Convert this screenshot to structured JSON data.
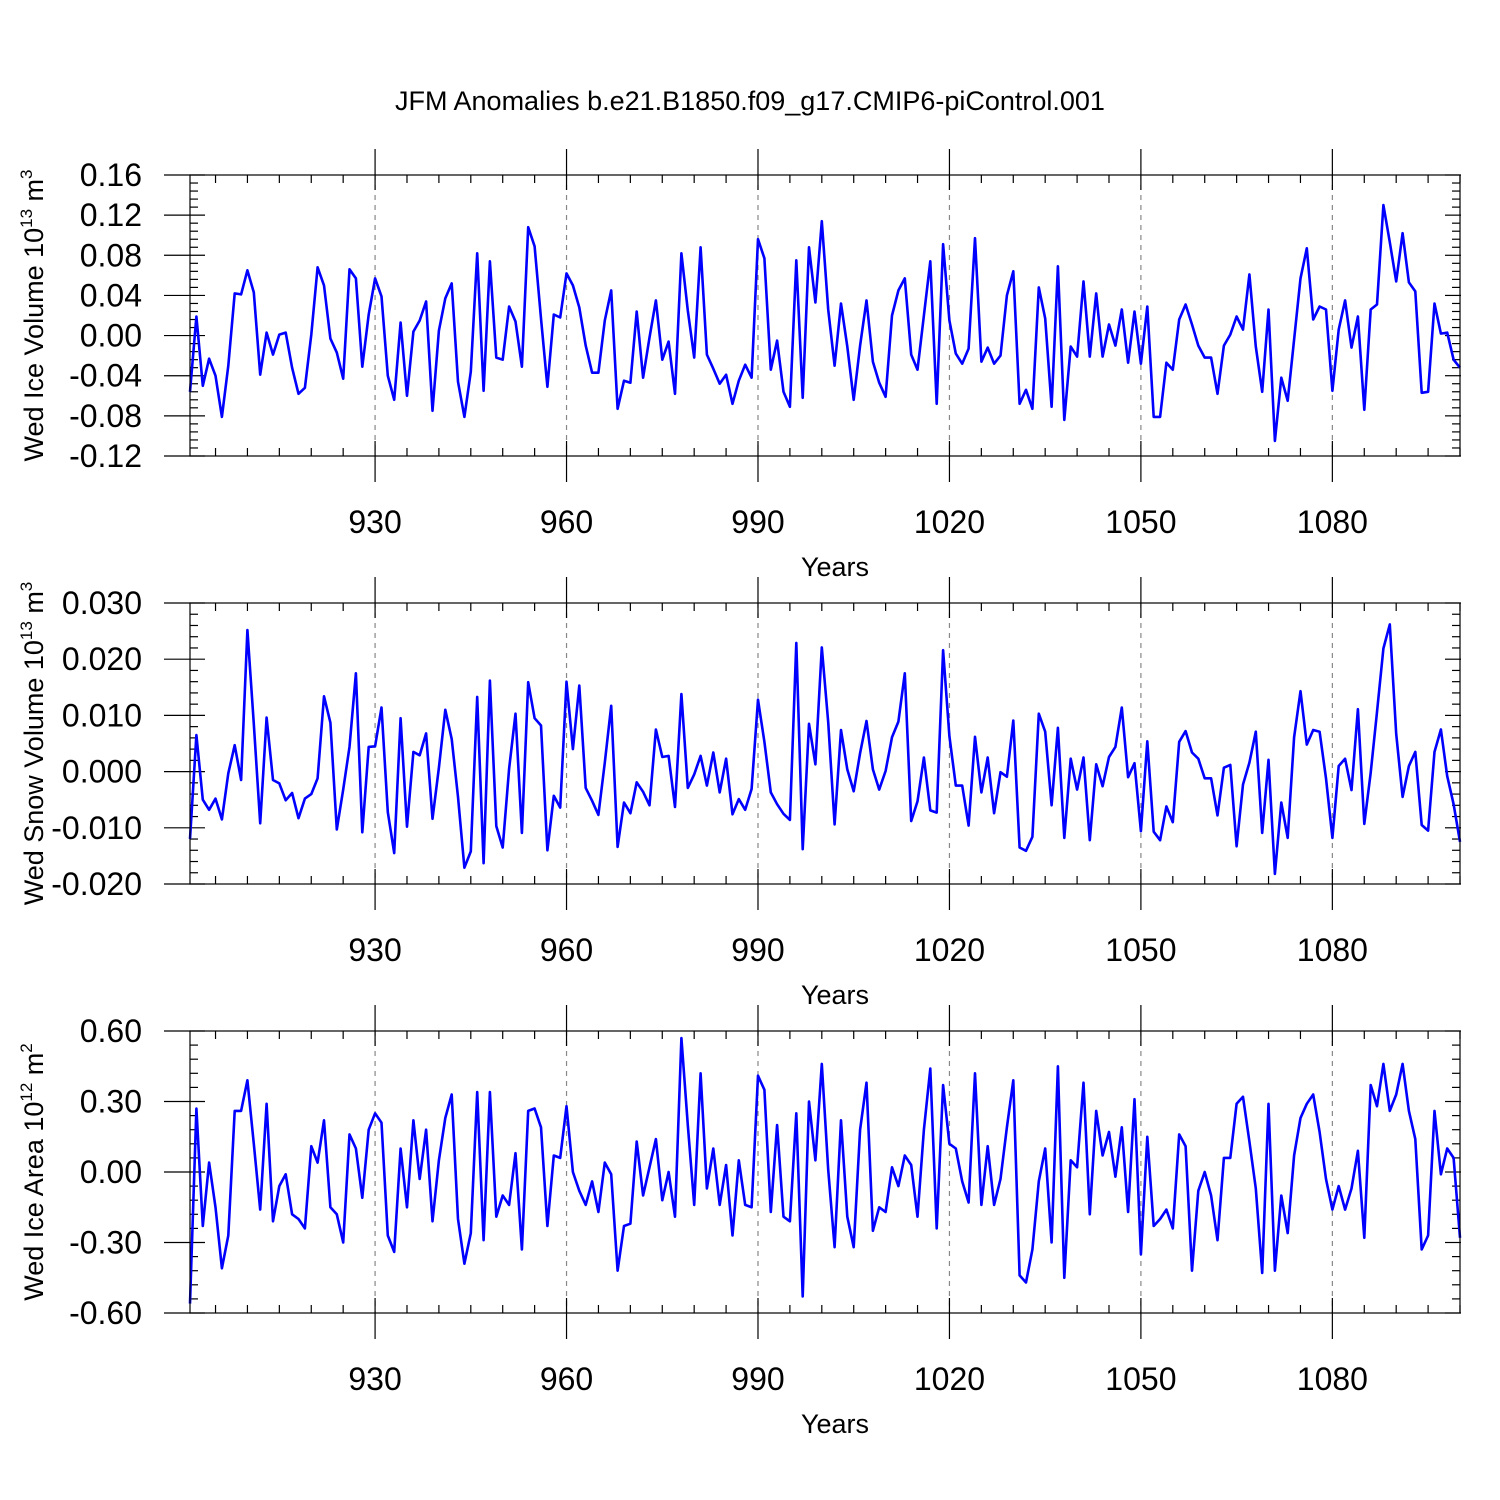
{
  "title": "JFM Anomalies b.e21.B1850.f09_g17.CMIP6-piControl.001",
  "chart_data": [
    {
      "type": "line",
      "ylabel": "Wed Ice Volume 10",
      "ylabel_exp": "13",
      "ylabel_unit": " m",
      "ylabel_unit_exp": "3",
      "xlabel": "Years",
      "xlim": [
        901,
        1100
      ],
      "ylim": [
        -0.12,
        0.16
      ],
      "xticks": [
        930,
        960,
        990,
        1020,
        1050,
        1080
      ],
      "xtick_labels": [
        "930",
        "960",
        "990",
        "1020",
        "1050",
        "1080"
      ],
      "yticks": [
        -0.12,
        -0.08,
        -0.04,
        0.0,
        0.04,
        0.08,
        0.12,
        0.16
      ],
      "ytick_labels": [
        "-0.12",
        "-0.08",
        "-0.04",
        "0.00",
        "0.04",
        "0.08",
        "0.12",
        "0.16"
      ],
      "grid_x": true,
      "color": "#0000ff",
      "x_start": 901,
      "values": [
        -0.056,
        0.019,
        -0.05,
        -0.023,
        -0.04,
        -0.081,
        -0.03,
        0.042,
        0.041,
        0.065,
        0.043,
        -0.039,
        0.003,
        -0.019,
        0.001,
        0.003,
        -0.032,
        -0.058,
        -0.052,
        0.001,
        0.068,
        0.05,
        -0.003,
        -0.017,
        -0.043,
        0.066,
        0.057,
        -0.031,
        0.021,
        0.057,
        0.039,
        -0.04,
        -0.064,
        0.013,
        -0.06,
        0.004,
        0.015,
        0.034,
        -0.075,
        0.005,
        0.037,
        0.052,
        -0.046,
        -0.081,
        -0.036,
        0.082,
        -0.055,
        0.074,
        -0.022,
        -0.024,
        0.029,
        0.014,
        -0.031,
        0.108,
        0.089,
        0.017,
        -0.051,
        0.021,
        0.018,
        0.062,
        0.05,
        0.028,
        -0.01,
        -0.037,
        -0.037,
        0.015,
        0.045,
        -0.073,
        -0.045,
        -0.047,
        0.024,
        -0.042,
        -0.002,
        0.035,
        -0.024,
        -0.006,
        -0.058,
        0.082,
        0.025,
        -0.022,
        0.088,
        -0.019,
        -0.033,
        -0.048,
        -0.039,
        -0.068,
        -0.045,
        -0.029,
        -0.042,
        0.096,
        0.077,
        -0.034,
        -0.005,
        -0.056,
        -0.071,
        0.075,
        -0.062,
        0.088,
        0.033,
        0.114,
        0.026,
        -0.03,
        0.032,
        -0.011,
        -0.064,
        -0.01,
        0.035,
        -0.026,
        -0.047,
        -0.061,
        0.02,
        0.045,
        0.057,
        -0.019,
        -0.034,
        0.02,
        0.074,
        -0.068,
        0.091,
        0.015,
        -0.018,
        -0.028,
        -0.013,
        0.097,
        -0.026,
        -0.012,
        -0.028,
        -0.02,
        0.04,
        0.064,
        -0.068,
        -0.054,
        -0.073,
        0.048,
        0.017,
        -0.071,
        0.069,
        -0.084,
        -0.011,
        -0.021,
        0.054,
        -0.021,
        0.042,
        -0.021,
        0.011,
        -0.01,
        0.026,
        -0.027,
        0.024,
        -0.028,
        0.029,
        -0.081,
        -0.081,
        -0.027,
        -0.034,
        0.016,
        0.031,
        0.011,
        -0.01,
        -0.022,
        -0.022,
        -0.058,
        -0.01,
        0.001,
        0.019,
        0.006,
        0.061,
        -0.011,
        -0.056,
        0.026,
        -0.105,
        -0.042,
        -0.065,
        -0.004,
        0.057,
        0.087,
        0.016,
        0.029,
        0.026,
        -0.055,
        0.006,
        0.035,
        -0.012,
        0.019,
        -0.074,
        0.026,
        0.031,
        0.13,
        0.093,
        0.054,
        0.102,
        0.053,
        0.044,
        -0.057,
        -0.056,
        0.032,
        0.002,
        0.003,
        -0.024,
        -0.032
      ]
    },
    {
      "type": "line",
      "ylabel": "Wed Snow Volume 10",
      "ylabel_exp": "13",
      "ylabel_unit": " m",
      "ylabel_unit_exp": "3",
      "xlabel": "Years",
      "xlim": [
        901,
        1100
      ],
      "ylim": [
        -0.02,
        0.03
      ],
      "xticks": [
        930,
        960,
        990,
        1020,
        1050,
        1080
      ],
      "xtick_labels": [
        "930",
        "960",
        "990",
        "1020",
        "1050",
        "1080"
      ],
      "yticks": [
        -0.02,
        -0.01,
        0.0,
        0.01,
        0.02,
        0.03
      ],
      "ytick_labels": [
        "-0.020",
        "-0.010",
        "0.000",
        "0.010",
        "0.020",
        "0.030"
      ],
      "grid_x": true,
      "color": "#0000ff",
      "x_start": 901,
      "values": [
        -0.012,
        0.0065,
        -0.005,
        -0.0068,
        -0.0048,
        -0.0085,
        -0.0003,
        0.0047,
        -0.0015,
        0.0252,
        0.0085,
        -0.0092,
        0.0096,
        -0.0015,
        -0.0021,
        -0.0051,
        -0.0038,
        -0.0083,
        -0.0048,
        -0.004,
        -0.0012,
        0.0134,
        0.0087,
        -0.0103,
        -0.0032,
        0.0044,
        0.0175,
        -0.0108,
        0.0044,
        0.0045,
        0.0114,
        -0.0072,
        -0.0145,
        0.0095,
        -0.0098,
        0.0035,
        0.0029,
        0.0068,
        -0.0084,
        0.0007,
        0.011,
        0.0058,
        -0.0045,
        -0.0171,
        -0.0142,
        0.0133,
        -0.0163,
        0.0162,
        -0.0097,
        -0.0135,
        0.0005,
        0.0103,
        -0.0109,
        0.0159,
        0.0095,
        0.0082,
        -0.014,
        -0.0043,
        -0.0064,
        0.016,
        0.004,
        0.0153,
        -0.0029,
        -0.0052,
        -0.0077,
        0.0016,
        0.0117,
        -0.0134,
        -0.0055,
        -0.0074,
        -0.0019,
        -0.0036,
        -0.006,
        0.0075,
        0.0026,
        0.0028,
        -0.0063,
        0.0138,
        -0.0029,
        -0.0005,
        0.0028,
        -0.0025,
        0.0034,
        -0.0037,
        0.0023,
        -0.0076,
        -0.0049,
        -0.0068,
        -0.0031,
        0.0128,
        0.0053,
        -0.0037,
        -0.0058,
        -0.0075,
        -0.0086,
        0.0229,
        -0.0138,
        0.0085,
        0.0013,
        0.0221,
        0.0088,
        -0.0094,
        0.0074,
        0.0004,
        -0.0035,
        0.0033,
        0.009,
        0.0004,
        -0.0032,
        0.0001,
        0.0061,
        0.0089,
        0.0175,
        -0.0088,
        -0.0053,
        0.0025,
        -0.0069,
        -0.0073,
        0.0216,
        0.0063,
        -0.0025,
        -0.0025,
        -0.0096,
        0.0062,
        -0.0037,
        0.0025,
        -0.0074,
        -0.0001,
        -0.0009,
        0.0091,
        -0.0135,
        -0.0141,
        -0.0116,
        0.0103,
        0.0071,
        -0.006,
        0.0078,
        -0.0118,
        0.0023,
        -0.0032,
        0.0025,
        -0.0122,
        0.0013,
        -0.0026,
        0.0026,
        0.0044,
        0.0114,
        -0.001,
        0.0015,
        -0.0106,
        0.0054,
        -0.0107,
        -0.0122,
        -0.0062,
        -0.009,
        0.0053,
        0.0072,
        0.0034,
        0.0023,
        -0.0012,
        -0.0012,
        -0.0078,
        0.0007,
        0.0012,
        -0.0133,
        -0.0023,
        0.0016,
        0.0071,
        -0.0109,
        0.0021,
        -0.0182,
        -0.0055,
        -0.0118,
        0.0061,
        0.0143,
        0.0048,
        0.0074,
        0.0071,
        -0.0012,
        -0.0118,
        0.001,
        0.0023,
        -0.0033,
        0.0111,
        -0.0093,
        -0.0002,
        0.0106,
        0.0219,
        0.0262,
        0.0067,
        -0.0045,
        0.001,
        0.0035,
        -0.0095,
        -0.0105,
        0.0035,
        0.0075,
        -0.0008,
        -0.0058,
        -0.0125
      ]
    },
    {
      "type": "line",
      "ylabel": "Wed Ice Area 10",
      "ylabel_exp": "12",
      "ylabel_unit": " m",
      "ylabel_unit_exp": "2",
      "xlabel": "Years",
      "xlim": [
        901,
        1100
      ],
      "ylim": [
        -0.6,
        0.6
      ],
      "xticks": [
        930,
        960,
        990,
        1020,
        1050,
        1080
      ],
      "xtick_labels": [
        "930",
        "960",
        "990",
        "1020",
        "1050",
        "1080"
      ],
      "yticks": [
        -0.6,
        -0.3,
        0.0,
        0.3,
        0.6
      ],
      "ytick_labels": [
        "-0.60",
        "-0.30",
        "0.00",
        "0.30",
        "0.60"
      ],
      "grid_x": true,
      "color": "#0000ff",
      "x_start": 901,
      "values": [
        -0.56,
        0.27,
        -0.23,
        0.04,
        -0.15,
        -0.41,
        -0.27,
        0.26,
        0.26,
        0.39,
        0.12,
        -0.16,
        0.29,
        -0.21,
        -0.06,
        -0.01,
        -0.18,
        -0.2,
        -0.24,
        0.11,
        0.04,
        0.22,
        -0.15,
        -0.18,
        -0.3,
        0.16,
        0.1,
        -0.11,
        0.18,
        0.25,
        0.21,
        -0.27,
        -0.34,
        0.1,
        -0.15,
        0.22,
        -0.03,
        0.18,
        -0.21,
        0.05,
        0.23,
        0.33,
        -0.2,
        -0.39,
        -0.26,
        0.34,
        -0.29,
        0.34,
        -0.19,
        -0.1,
        -0.14,
        0.08,
        -0.33,
        0.26,
        0.27,
        0.19,
        -0.23,
        0.07,
        0.06,
        0.28,
        0.0,
        -0.08,
        -0.14,
        -0.04,
        -0.17,
        0.04,
        -0.01,
        -0.42,
        -0.23,
        -0.22,
        0.13,
        -0.1,
        0.02,
        0.14,
        -0.12,
        0.0,
        -0.19,
        0.57,
        0.2,
        -0.14,
        0.42,
        -0.07,
        0.1,
        -0.14,
        0.03,
        -0.27,
        0.05,
        -0.14,
        -0.15,
        0.41,
        0.35,
        -0.17,
        0.2,
        -0.19,
        -0.21,
        0.25,
        -0.53,
        0.3,
        0.05,
        0.46,
        0.01,
        -0.32,
        0.22,
        -0.19,
        -0.32,
        0.18,
        0.38,
        -0.25,
        -0.15,
        -0.17,
        0.02,
        -0.06,
        0.07,
        0.03,
        -0.19,
        0.18,
        0.44,
        -0.24,
        0.37,
        0.12,
        0.1,
        -0.04,
        -0.13,
        0.42,
        -0.14,
        0.11,
        -0.14,
        -0.03,
        0.19,
        0.39,
        -0.44,
        -0.47,
        -0.33,
        -0.04,
        0.1,
        -0.3,
        0.45,
        -0.45,
        0.05,
        0.02,
        0.38,
        -0.18,
        0.26,
        0.07,
        0.17,
        -0.02,
        0.19,
        -0.17,
        0.31,
        -0.35,
        0.15,
        -0.23,
        -0.2,
        -0.16,
        -0.24,
        0.16,
        0.11,
        -0.42,
        -0.08,
        0.0,
        -0.1,
        -0.29,
        0.06,
        0.06,
        0.29,
        0.32,
        0.13,
        -0.07,
        -0.43,
        0.29,
        -0.42,
        -0.1,
        -0.26,
        0.07,
        0.23,
        0.29,
        0.33,
        0.17,
        -0.03,
        -0.16,
        -0.06,
        -0.16,
        -0.07,
        0.09,
        -0.28,
        0.37,
        0.28,
        0.46,
        0.26,
        0.33,
        0.46,
        0.26,
        0.14,
        -0.33,
        -0.27,
        0.26,
        -0.01,
        0.1,
        0.06,
        -0.28
      ]
    }
  ]
}
